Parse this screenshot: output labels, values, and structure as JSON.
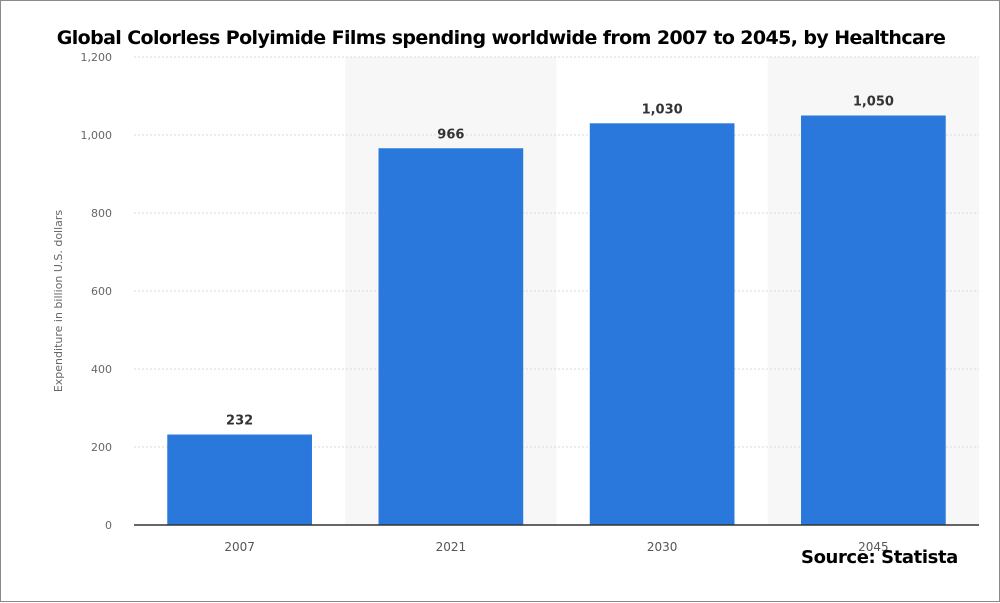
{
  "chart_data": {
    "type": "bar",
    "title": "Global Colorless Polyimide Films spending worldwide from 2007 to 2045, by Healthcare",
    "xlabel": "",
    "ylabel": "Expenditure in billion U.S. dollars",
    "categories": [
      "2007",
      "2021",
      "2030",
      "2045"
    ],
    "values": [
      232,
      966,
      1030,
      1050
    ],
    "value_labels": [
      "232",
      "966",
      "1,030",
      "1,050"
    ],
    "ylim": [
      0,
      1200
    ],
    "yticks": [
      0,
      200,
      400,
      600,
      800,
      1000,
      1200
    ],
    "ytick_labels": [
      "0",
      "200",
      "400",
      "600",
      "800",
      "1,000",
      "1,200"
    ],
    "grid": true,
    "bar_color": "#2a78dc",
    "source": "Source: Statista"
  }
}
